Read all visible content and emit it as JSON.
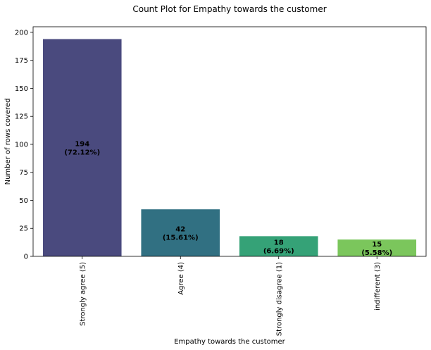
{
  "chart_data": {
    "type": "bar",
    "title": "Count Plot for Empathy towards the customer",
    "xlabel": "Empathy towards the customer",
    "ylabel": "Number of rows covered",
    "categories": [
      "Strongly agree (5)",
      "Agree (4)",
      "Strongly disagree (1)",
      "indifferent (3)"
    ],
    "values": [
      194,
      42,
      18,
      15
    ],
    "value_labels": [
      "194",
      "42",
      "18",
      "15"
    ],
    "percent_labels": [
      "(72.12%)",
      "(15.61%)",
      "(6.69%)",
      "(5.58%)"
    ],
    "colors": [
      "#482878",
      "#26828e",
      "#35b779",
      "#6ece58"
    ],
    "bar_colors_rendered": [
      "#4a4a7e",
      "#317082",
      "#35a277",
      "#7bc65c"
    ],
    "ylim": [
      0,
      205
    ],
    "yticks": [
      "0",
      "25",
      "50",
      "75",
      "100",
      "125",
      "150",
      "175",
      "200"
    ],
    "grid": false,
    "legend": "none"
  }
}
